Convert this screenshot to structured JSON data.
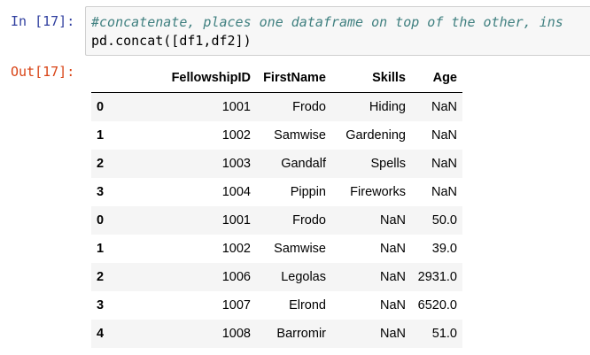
{
  "input_prompt": "In [17]:",
  "output_prompt": "Out[17]:",
  "code": {
    "comment": "#concatenate, places one dataframe on top of the other, ins",
    "call": "pd.concat([df1,df2])"
  },
  "table": {
    "columns": [
      "",
      "FellowshipID",
      "FirstName",
      "Skills",
      "Age"
    ],
    "rows": [
      [
        "0",
        "1001",
        "Frodo",
        "Hiding",
        "NaN"
      ],
      [
        "1",
        "1002",
        "Samwise",
        "Gardening",
        "NaN"
      ],
      [
        "2",
        "1003",
        "Gandalf",
        "Spells",
        "NaN"
      ],
      [
        "3",
        "1004",
        "Pippin",
        "Fireworks",
        "NaN"
      ],
      [
        "0",
        "1001",
        "Frodo",
        "NaN",
        "50.0"
      ],
      [
        "1",
        "1002",
        "Samwise",
        "NaN",
        "39.0"
      ],
      [
        "2",
        "1006",
        "Legolas",
        "NaN",
        "2931.0"
      ],
      [
        "3",
        "1007",
        "Elrond",
        "NaN",
        "6520.0"
      ],
      [
        "4",
        "1008",
        "Barromir",
        "NaN",
        "51.0"
      ]
    ]
  }
}
